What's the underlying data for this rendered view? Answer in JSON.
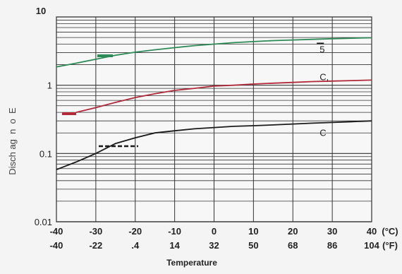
{
  "chart_data": {
    "type": "line",
    "title": "",
    "xlabel": "Temperature",
    "ylabel": "Disch ag  n  o  E",
    "y_scale": "log",
    "ylim": [
      0.01,
      10
    ],
    "xlim": [
      -40,
      40
    ],
    "grid": true,
    "x_ticks_c": [
      "-40",
      "-30",
      "-20",
      "-10",
      "0",
      "10",
      "20",
      "30",
      "40"
    ],
    "x_ticks_f": [
      "-40",
      "-22",
      ".4",
      "14",
      "32",
      "50",
      "68",
      "86",
      "104"
    ],
    "x_unit_c": "(°C)",
    "x_unit_f": "(°F)",
    "y_ticks": [
      {
        "value": 10,
        "label": "10"
      },
      {
        "value": 1,
        "label": "1"
      },
      {
        "value": 0.1,
        "label": "0.1"
      },
      {
        "value": 0.01,
        "label": "0.01"
      }
    ],
    "series": [
      {
        "name": "5",
        "color": "#2e8b57",
        "x": [
          -40,
          -35,
          -30,
          -25,
          -20,
          -15,
          -10,
          -5,
          0,
          5,
          10,
          15,
          20,
          25,
          30,
          35,
          40
        ],
        "y": [
          1.85,
          2.1,
          2.4,
          2.75,
          3.05,
          3.3,
          3.55,
          3.8,
          4.0,
          4.2,
          4.35,
          4.5,
          4.6,
          4.7,
          4.8,
          4.88,
          4.95
        ]
      },
      {
        "name": "C,",
        "color": "#b02a3a",
        "x": [
          -35,
          -30,
          -25,
          -20,
          -15,
          -10,
          -5,
          0,
          5,
          10,
          15,
          20,
          25,
          30,
          35,
          40
        ],
        "y": [
          0.4,
          0.47,
          0.56,
          0.66,
          0.75,
          0.84,
          0.9,
          0.97,
          1.0,
          1.04,
          1.07,
          1.1,
          1.13,
          1.15,
          1.17,
          1.19
        ]
      },
      {
        "name": "C",
        "color": "#1a1a1a",
        "x": [
          -40,
          -35,
          -30,
          -25,
          -20,
          -15,
          -10,
          -5,
          0,
          5,
          10,
          15,
          20,
          25,
          30,
          35,
          40
        ],
        "y": [
          0.058,
          0.075,
          0.1,
          0.14,
          0.17,
          0.2,
          0.215,
          0.23,
          0.24,
          0.25,
          0.255,
          0.262,
          0.27,
          0.278,
          0.285,
          0.292,
          0.3
        ]
      }
    ],
    "legend": [
      {
        "series": 0,
        "label": "5",
        "text_x": 25,
        "text_y": 3.0
      },
      {
        "series": 1,
        "label": "C,",
        "text_x": 25,
        "text_y": 1.18
      },
      {
        "series": 2,
        "label": "C",
        "text_x": 25,
        "text_y": 0.18
      }
    ]
  }
}
